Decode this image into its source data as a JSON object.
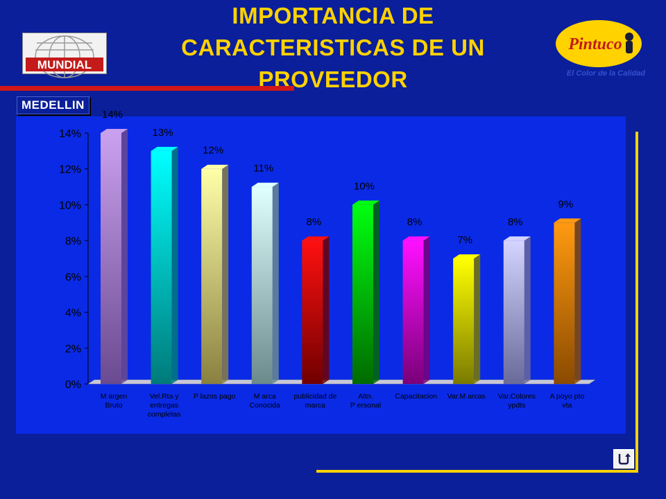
{
  "header": {
    "title": "IMPORTANCIA DE CARACTERISTICAS DE UN PROVEEDOR",
    "subtitle": "MEDELLIN",
    "left_logo_text": "MUNDIAL",
    "right_logo_text": "Pintuco",
    "right_tagline": "El Color de la Calidad"
  },
  "nav": {
    "back_icon": "return-arrow-icon"
  },
  "chart_data": {
    "type": "bar",
    "categories": [
      [
        "M argen",
        "Bruto"
      ],
      [
        "Vel.Rta y",
        "entregas",
        "completas"
      ],
      [
        "P lazos pago"
      ],
      [
        "M arca",
        "Conocida"
      ],
      [
        "publicidad de",
        "marca"
      ],
      [
        "Attn.",
        "P ersonal"
      ],
      [
        "Capacitacion"
      ],
      [
        "Var.M arcas"
      ],
      [
        "Var.Colores",
        "ypdts"
      ],
      [
        "A poyo pto",
        "vta"
      ]
    ],
    "values": [
      0.14,
      0.13,
      0.12,
      0.11,
      0.08,
      0.1,
      0.08,
      0.07,
      0.08,
      0.09
    ],
    "data_labels": [
      "14%",
      "13%",
      "12%",
      "11%",
      "8%",
      "10%",
      "8%",
      "7%",
      "8%",
      "9%"
    ],
    "ylim": [
      0,
      0.14
    ],
    "yticks": [
      "0%",
      "2%",
      "4%",
      "6%",
      "8%",
      "10%",
      "12%",
      "14%"
    ],
    "colors": [
      [
        "#c9a0ee",
        "#6a4a90"
      ],
      [
        "#00ffff",
        "#007a7a"
      ],
      [
        "#ffffa8",
        "#8a8040"
      ],
      [
        "#e0ffff",
        "#6a8a8c"
      ],
      [
        "#ff1010",
        "#700000"
      ],
      [
        "#00ff10",
        "#006a00"
      ],
      [
        "#ff10ff",
        "#7a007a"
      ],
      [
        "#ffff00",
        "#7a7a00"
      ],
      [
        "#d4d4ff",
        "#6a6a9a"
      ],
      [
        "#ff9a10",
        "#8a4a00"
      ]
    ],
    "grid": false
  }
}
